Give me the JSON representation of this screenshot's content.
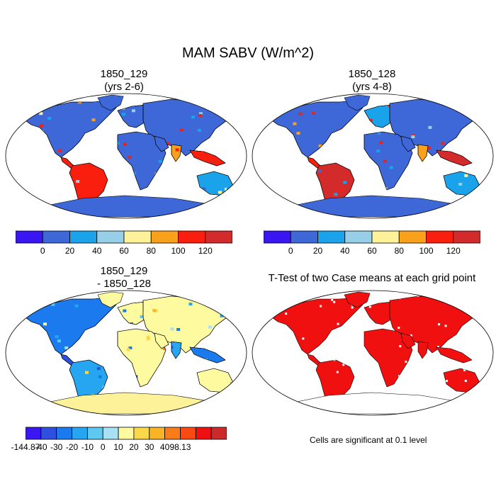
{
  "figure": {
    "title": "MAM SABV (W/m^2)"
  },
  "panels": [
    {
      "id": "p1",
      "title_line1": "1850_129",
      "title_line2": "(yrs 2-6)",
      "palette": "abs",
      "antarctica": "#3e67d8"
    },
    {
      "id": "p2",
      "title_line1": "1850_128",
      "title_line2": "(yrs 4-8)",
      "palette": "abs",
      "antarctica": "#3e67d8"
    },
    {
      "id": "p3",
      "title_line1": "1850_129",
      "title_line2": "- 1850_128",
      "palette": "diff",
      "antarctica": "#fdf19a"
    },
    {
      "id": "p4",
      "title_line1": "T-Test of two Case means at each grid point",
      "title_line2": "",
      "palette": "ttest",
      "antarctica": "#ffffff"
    }
  ],
  "colorbars": {
    "abs": {
      "colors": [
        "#3a16f2",
        "#3e67d8",
        "#1aa2ea",
        "#98cfe8",
        "#fdf19a",
        "#f9a11a",
        "#fa1e0f",
        "#d32b2b"
      ],
      "labels": [
        "0",
        "20",
        "40",
        "60",
        "80",
        "100",
        "120"
      ]
    },
    "diff": {
      "colors": [
        "#3a16f2",
        "#2e4fe0",
        "#1a7aee",
        "#26a6f0",
        "#5ec8f0",
        "#a8e0f4",
        "#fefaa0",
        "#fbd84a",
        "#f9b425",
        "#f87c1a",
        "#f84a12",
        "#ee1010",
        "#cc2a2a"
      ],
      "labels": [
        "-144.87",
        "-40",
        "-30",
        "-20",
        "-10",
        "0",
        "10",
        "20",
        "30",
        "40",
        "98.13"
      ]
    }
  },
  "ttest_note": "Cells are significant at 0.1 level",
  "colors": {
    "significant": "#f11010",
    "outline": "#000000"
  }
}
